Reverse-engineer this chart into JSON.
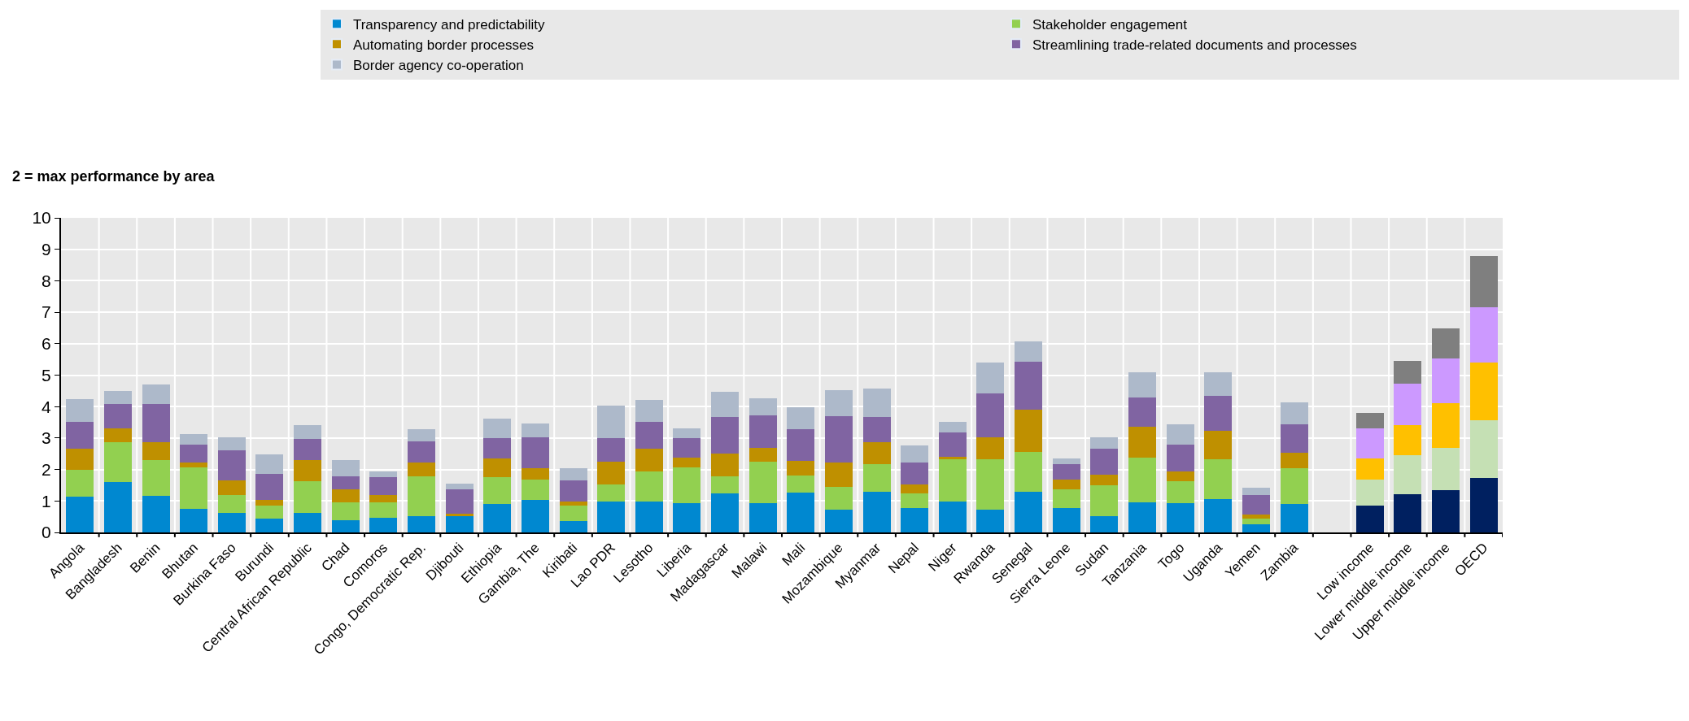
{
  "chart_data": {
    "type": "bar",
    "stacked": true,
    "ylabel": "2 = max performance by area",
    "categories": [
      "Angola",
      "Bangladesh",
      "Benin",
      "Bhutan",
      "Burkina Faso",
      "Burundi",
      "Central African Republic",
      "Chad",
      "Comoros",
      "Congo, Democratic Rep.",
      "Djibouti",
      "Ethiopia",
      "Gambia, The",
      "Kiribati",
      "Lao PDR",
      "Lesotho",
      "Liberia",
      "Madagascar",
      "Malawi",
      "Mali",
      "Mozambique",
      "Myanmar",
      "Nepal",
      "Niger",
      "Rwanda",
      "Senegal",
      "Sierra Leone",
      "Sudan",
      "Tanzania",
      "Togo",
      "Uganda",
      "Yemen",
      "Zambia",
      null,
      "Low income",
      "Lower middle income",
      "Upper middle income",
      "OECD"
    ],
    "series": [
      {
        "name": "Transparency and predictability",
        "color": "#0088d0",
        "values": [
          1.14,
          1.59,
          1.17,
          0.74,
          0.61,
          0.44,
          0.61,
          0.38,
          0.47,
          0.51,
          0.51,
          0.9,
          1.03,
          0.35,
          0.97,
          0.97,
          0.93,
          1.23,
          0.93,
          1.26,
          0.73,
          1.3,
          0.77,
          0.97,
          0.73,
          1.3,
          0.78,
          0.52,
          0.95,
          0.92,
          1.05,
          0.27,
          0.9,
          null,
          0.86,
          1.21,
          1.35,
          1.74
        ],
        "colors": [
          "#0088d0",
          "#0088d0",
          "#0088d0",
          "#0088d0",
          "#0088d0",
          "#0088d0",
          "#0088d0",
          "#0088d0",
          "#0088d0",
          "#0088d0",
          "#0088d0",
          "#0088d0",
          "#0088d0",
          "#0088d0",
          "#0088d0",
          "#0088d0",
          "#0088d0",
          "#0088d0",
          "#0088d0",
          "#0088d0",
          "#0088d0",
          "#0088d0",
          "#0088d0",
          "#0088d0",
          "#0088d0",
          "#0088d0",
          "#0088d0",
          "#0088d0",
          "#0088d0",
          "#0088d0",
          "#0088d0",
          "#0088d0",
          "#0088d0",
          null,
          "#002060",
          "#002060",
          "#002060",
          "#002060"
        ]
      },
      {
        "name": "Stakeholder engagement",
        "color": "#92d050",
        "values": [
          0.84,
          1.28,
          1.14,
          1.34,
          0.59,
          0.42,
          1.01,
          0.58,
          0.49,
          1.27,
          0,
          0.85,
          0.66,
          0.51,
          0.55,
          0.98,
          1.15,
          0.56,
          1.32,
          0.56,
          0.73,
          0.88,
          0.46,
          1.35,
          1.59,
          1.27,
          0.59,
          0.99,
          1.44,
          0.72,
          1.28,
          0.16,
          1.13,
          null,
          0.81,
          1.24,
          1.34,
          1.83
        ],
        "colors": [
          "#92d050",
          "#92d050",
          "#92d050",
          "#92d050",
          "#92d050",
          "#92d050",
          "#92d050",
          "#92d050",
          "#92d050",
          "#92d050",
          "#92d050",
          "#92d050",
          "#92d050",
          "#92d050",
          "#92d050",
          "#92d050",
          "#92d050",
          "#92d050",
          "#92d050",
          "#92d050",
          "#92d050",
          "#92d050",
          "#92d050",
          "#92d050",
          "#92d050",
          "#92d050",
          "#92d050",
          "#92d050",
          "#92d050",
          "#92d050",
          "#92d050",
          "#92d050",
          "#92d050",
          null,
          "#c5e0b4",
          "#c5e0b4",
          "#c5e0b4",
          "#c5e0b4"
        ]
      },
      {
        "name": "Automating border processes",
        "color": "#bf9000",
        "values": [
          0.68,
          0.45,
          0.56,
          0.14,
          0.46,
          0.17,
          0.69,
          0.4,
          0.24,
          0.43,
          0.09,
          0.59,
          0.35,
          0.11,
          0.73,
          0.72,
          0.3,
          0.72,
          0.45,
          0.46,
          0.76,
          0.69,
          0.29,
          0.09,
          0.71,
          1.34,
          0.3,
          0.32,
          0.98,
          0.3,
          0.91,
          0.13,
          0.5,
          null,
          0.69,
          0.96,
          1.41,
          1.83
        ],
        "colors": [
          "#bf9000",
          "#bf9000",
          "#bf9000",
          "#bf9000",
          "#bf9000",
          "#bf9000",
          "#bf9000",
          "#bf9000",
          "#bf9000",
          "#bf9000",
          "#bf9000",
          "#bf9000",
          "#bf9000",
          "#bf9000",
          "#bf9000",
          "#bf9000",
          "#bf9000",
          "#bf9000",
          "#bf9000",
          "#bf9000",
          "#bf9000",
          "#bf9000",
          "#bf9000",
          "#bf9000",
          "#bf9000",
          "#bf9000",
          "#bf9000",
          "#bf9000",
          "#bf9000",
          "#bf9000",
          "#bf9000",
          "#bf9000",
          "#bf9000",
          null,
          "#ffc000",
          "#ffc000",
          "#ffc000",
          "#ffc000"
        ]
      },
      {
        "name": "Streamlining trade-related documents and processes",
        "color": "#8064a2",
        "values": [
          0.86,
          0.76,
          1.21,
          0.58,
          0.94,
          0.82,
          0.65,
          0.43,
          0.55,
          0.69,
          0.76,
          0.66,
          0.99,
          0.69,
          0.75,
          0.85,
          0.62,
          1.15,
          1.02,
          1.01,
          1.47,
          0.79,
          0.7,
          0.78,
          1.38,
          1.52,
          0.5,
          0.82,
          0.92,
          0.85,
          1.11,
          0.62,
          0.91,
          null,
          0.95,
          1.33,
          1.43,
          1.77
        ],
        "colors": [
          "#8064a2",
          "#8064a2",
          "#8064a2",
          "#8064a2",
          "#8064a2",
          "#8064a2",
          "#8064a2",
          "#8064a2",
          "#8064a2",
          "#8064a2",
          "#8064a2",
          "#8064a2",
          "#8064a2",
          "#8064a2",
          "#8064a2",
          "#8064a2",
          "#8064a2",
          "#8064a2",
          "#8064a2",
          "#8064a2",
          "#8064a2",
          "#8064a2",
          "#8064a2",
          "#8064a2",
          "#8064a2",
          "#8064a2",
          "#8064a2",
          "#8064a2",
          "#8064a2",
          "#8064a2",
          "#8064a2",
          "#8064a2",
          "#8064a2",
          null,
          "#cc99ff",
          "#cc99ff",
          "#cc99ff",
          "#cc99ff"
        ]
      },
      {
        "name": "Border agency co-operation",
        "color": "#adb9ca",
        "values": [
          0.72,
          0.42,
          0.62,
          0.33,
          0.43,
          0.62,
          0.46,
          0.52,
          0.19,
          0.39,
          0.19,
          0.62,
          0.43,
          0.38,
          1.04,
          0.69,
          0.32,
          0.81,
          0.55,
          0.68,
          0.84,
          0.91,
          0.54,
          0.33,
          0.98,
          0.65,
          0.19,
          0.37,
          0.81,
          0.65,
          0.75,
          0.23,
          0.69,
          null,
          0.49,
          0.7,
          0.96,
          1.61
        ],
        "colors": [
          "#adb9ca",
          "#adb9ca",
          "#adb9ca",
          "#adb9ca",
          "#adb9ca",
          "#adb9ca",
          "#adb9ca",
          "#adb9ca",
          "#adb9ca",
          "#adb9ca",
          "#adb9ca",
          "#adb9ca",
          "#adb9ca",
          "#adb9ca",
          "#adb9ca",
          "#adb9ca",
          "#adb9ca",
          "#adb9ca",
          "#adb9ca",
          "#adb9ca",
          "#adb9ca",
          "#adb9ca",
          "#adb9ca",
          "#adb9ca",
          "#adb9ca",
          "#adb9ca",
          "#adb9ca",
          "#adb9ca",
          "#adb9ca",
          "#adb9ca",
          "#adb9ca",
          "#adb9ca",
          "#adb9ca",
          null,
          "#7f7f7f",
          "#7f7f7f",
          "#7f7f7f",
          "#7f7f7f"
        ]
      }
    ],
    "ylim": [
      0,
      10
    ],
    "yticks": [
      0,
      1,
      2,
      3,
      4,
      5,
      6,
      7,
      8,
      9,
      10
    ],
    "grid": true,
    "legend": "top"
  }
}
